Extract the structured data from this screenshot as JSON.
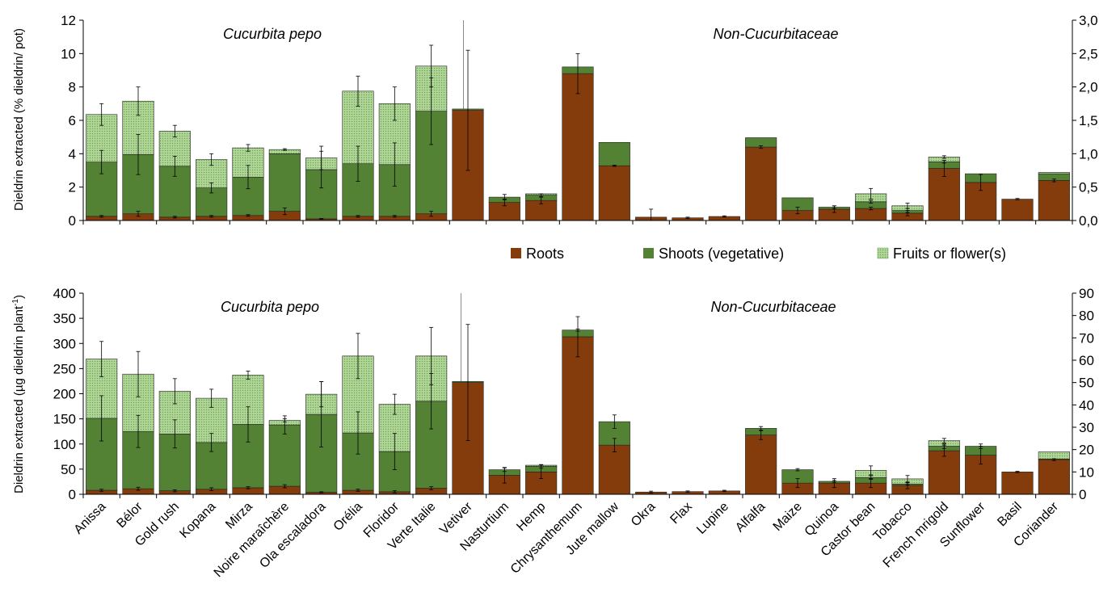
{
  "legend": {
    "position": "between-panels",
    "items": [
      {
        "label": "Roots",
        "color": "#843C0C"
      },
      {
        "label": "Shoots (vegetative)",
        "color": "#548235"
      },
      {
        "label": "Fruits or flower(s)",
        "color": "#A9D18E",
        "pattern": "dotted"
      }
    ]
  },
  "chart_data": [
    {
      "type": "bar",
      "stacked": true,
      "panel": "top",
      "ylabel": "Dieldrin extracted (% dieldrin/ pot)",
      "ylim": [
        0,
        12
      ],
      "yticks": [
        "0",
        "2",
        "4",
        "6",
        "8",
        "10",
        "12"
      ],
      "y2lim": [
        0,
        3.0
      ],
      "y2ticks": [
        "0,0",
        "0,5",
        "1,0",
        "1,5",
        "2,0",
        "2,5",
        "3,0"
      ],
      "group_labels": [
        "Cucurbita pepo",
        "Non-Cucurbitaceae"
      ],
      "categories": [
        "Anissa",
        "Bélor",
        "Gold rush",
        "Kopana",
        "Mirza",
        "Noire maraîchère",
        "Ola escaladora",
        "Orélia",
        "Floridor",
        "Verte Italie",
        "Vetiver",
        "Nasturtium",
        "Hemp",
        "Chrysanthemum",
        "Jute mallow",
        "Okra",
        "Flax",
        "Lupine",
        "Alfalfa",
        "Maize",
        "Quinoa",
        "Castor bean",
        "Tobacco",
        "French mrigold",
        "Sunflower",
        "Basil",
        "Coriander"
      ],
      "axis_assignment": [
        "left",
        "left",
        "left",
        "left",
        "left",
        "left",
        "left",
        "left",
        "left",
        "left",
        "right",
        "right",
        "right",
        "right",
        "right",
        "right",
        "right",
        "right",
        "right",
        "right",
        "right",
        "right",
        "right",
        "right",
        "right",
        "right",
        "right"
      ],
      "series": [
        {
          "name": "Roots",
          "values": [
            0.25,
            0.4,
            0.2,
            0.25,
            0.3,
            0.55,
            0.1,
            0.25,
            0.25,
            0.4,
            1.65,
            0.27,
            0.3,
            2.2,
            0.82,
            0.05,
            0.04,
            0.06,
            1.1,
            0.15,
            0.17,
            0.18,
            0.11,
            0.78,
            0.57,
            0.32,
            0.6
          ],
          "error": [
            0.05,
            0.15,
            0.05,
            0.05,
            0.05,
            0.2,
            0.02,
            0.05,
            0.05,
            0.15,
            0.9,
            0.05,
            0.05,
            0.3,
            0.01,
            0.12,
            0.01,
            0.01,
            0.02,
            0.05,
            0.05,
            0.02,
            0.04,
            0.12,
            0.12,
            0.01,
            0.02
          ]
        },
        {
          "name": "Shoots (vegetative)",
          "values": [
            3.25,
            3.55,
            3.05,
            1.7,
            2.3,
            3.45,
            2.95,
            3.15,
            3.1,
            6.15,
            0.02,
            0.08,
            0.08,
            0.1,
            0.35,
            0.0,
            0.0,
            0.0,
            0.14,
            0.19,
            0.03,
            0.1,
            0.04,
            0.1,
            0.13,
            0.0,
            0.1
          ],
          "error": [
            0.7,
            1.2,
            0.6,
            0.3,
            0.7,
            0.0,
            1.1,
            1.05,
            1.3,
            2.0,
            0.0,
            0.04,
            0.02,
            0.0,
            0.0,
            0.0,
            0.0,
            0.0,
            0.0,
            0.0,
            0.02,
            0.02,
            0.03,
            0.02,
            0.0,
            0.0,
            0.0
          ]
        },
        {
          "name": "Fruits or flower(s)",
          "values": [
            2.85,
            3.2,
            2.1,
            1.7,
            1.75,
            0.25,
            0.7,
            4.35,
            3.65,
            2.7,
            0.0,
            0.0,
            0.02,
            0.0,
            0.0,
            0.0,
            0.0,
            0.0,
            0.0,
            0.0,
            0.0,
            0.12,
            0.07,
            0.07,
            0.0,
            0.0,
            0.02
          ],
          "error": [
            0.65,
            0.85,
            0.35,
            0.35,
            0.2,
            0.05,
            0.7,
            0.9,
            1.0,
            1.25,
            0.0,
            0.0,
            0.0,
            0.0,
            0.0,
            0.0,
            0.0,
            0.0,
            0.0,
            0.0,
            0.0,
            0.08,
            0.04,
            0.02,
            0.0,
            0.0,
            0.0
          ]
        }
      ]
    },
    {
      "type": "bar",
      "stacked": true,
      "panel": "bottom",
      "ylabel": "Dieldrin extracted (µg dieldrin plant",
      "ylabel_superscript": "-1",
      "ylabel_suffix": ")",
      "ylim": [
        0,
        400
      ],
      "yticks": [
        "0",
        "50",
        "100",
        "150",
        "200",
        "250",
        "300",
        "350",
        "400"
      ],
      "y2lim": [
        0,
        90
      ],
      "y2ticks": [
        "0",
        "10",
        "20",
        "30",
        "40",
        "50",
        "60",
        "70",
        "80",
        "90"
      ],
      "group_labels": [
        "Cucurbita pepo",
        "Non-Cucurbitaceae"
      ],
      "categories": [
        "Anissa",
        "Bélor",
        "Gold rush",
        "Kopana",
        "Mirza",
        "Noire maraîchère",
        "Ola escaladora",
        "Orélia",
        "Floridor",
        "Verte Italie",
        "Vetiver",
        "Nasturtium",
        "Hemp",
        "Chrysanthemum",
        "Jute mallow",
        "Okra",
        "Flax",
        "Lupine",
        "Alfalfa",
        "Maize",
        "Quinoa",
        "Castor bean",
        "Tobacco",
        "French mrigold",
        "Sunflower",
        "Basil",
        "Coriander"
      ],
      "axis_assignment": [
        "left",
        "left",
        "left",
        "left",
        "left",
        "left",
        "left",
        "left",
        "left",
        "left",
        "right",
        "right",
        "right",
        "right",
        "right",
        "right",
        "right",
        "right",
        "right",
        "right",
        "right",
        "right",
        "right",
        "right",
        "right",
        "right",
        "right"
      ],
      "series": [
        {
          "name": "Roots",
          "values": [
            8,
            11,
            7,
            10,
            13,
            16,
            4,
            8,
            5,
            12,
            50,
            8.5,
            10,
            70.5,
            22,
            1,
            1.2,
            1.5,
            26.5,
            5,
            5,
            5,
            4,
            19.5,
            17.5,
            10,
            15.5
          ],
          "error": [
            2,
            3,
            2,
            3,
            2,
            3,
            1,
            2,
            2,
            3,
            26,
            3.5,
            3,
            9,
            3,
            0.4,
            0.3,
            0.3,
            2,
            2,
            2,
            2,
            1.5,
            2.5,
            4,
            0.3,
            0.4
          ]
        },
        {
          "name": "Shoots (vegetative)",
          "values": [
            143,
            114,
            113,
            93,
            126,
            122,
            155,
            114,
            80,
            173,
            0.5,
            2.5,
            2.5,
            3,
            10.5,
            0,
            0,
            0,
            3,
            6,
            0.8,
            2.5,
            0.6,
            2,
            4,
            0,
            0.3
          ],
          "error": [
            45,
            32,
            28,
            18,
            35,
            18,
            65,
            42,
            36,
            55,
            0,
            0.8,
            0.8,
            0.5,
            3,
            0,
            0,
            0,
            0.8,
            0.5,
            0.4,
            0.8,
            0.5,
            1,
            1,
            0,
            0
          ]
        },
        {
          "name": "Fruits or flower(s)",
          "values": [
            118,
            114,
            85,
            88,
            98,
            9,
            40,
            153,
            94,
            90,
            0,
            0,
            0.5,
            0,
            0,
            0,
            0,
            0,
            0,
            0,
            0,
            3.2,
            2.3,
            2.5,
            0,
            0,
            3.2
          ],
          "error": [
            35,
            45,
            25,
            18,
            8,
            3,
            25,
            45,
            20,
            57,
            0,
            0,
            0,
            0,
            0,
            0,
            0,
            0,
            0,
            0,
            0,
            2,
            1.5,
            1,
            0,
            0,
            0
          ]
        }
      ]
    }
  ]
}
